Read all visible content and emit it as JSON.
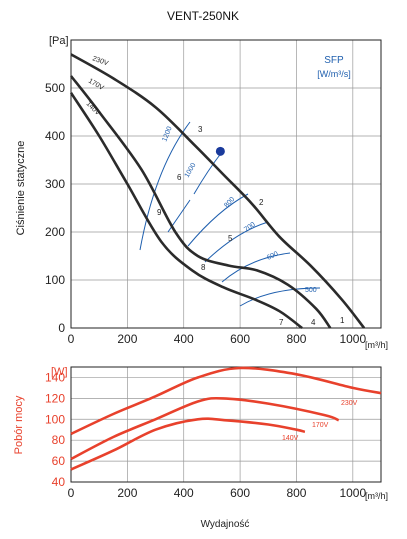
{
  "chart_data": [
    {
      "type": "line",
      "title": "VENT-250NK",
      "ylabel": "Ciśnienie statyczne",
      "y_unit": "[Pa]",
      "x_unit": "[m³/h]",
      "xlim": [
        0,
        1100
      ],
      "ylim": [
        0,
        600
      ],
      "x_ticks": [
        "0",
        "200",
        "400",
        "600",
        "800",
        "1000"
      ],
      "y_ticks": [
        "0",
        "100",
        "200",
        "300",
        "400",
        "500"
      ],
      "grid": true,
      "series": [
        {
          "name": "230V",
          "x": [
            0,
            150,
            300,
            440,
            540,
            640,
            740,
            850,
            960,
            1040
          ],
          "y": [
            570,
            520,
            460,
            380,
            320,
            260,
            190,
            130,
            60,
            0
          ]
        },
        {
          "name": "170V",
          "x": [
            0,
            100,
            250,
            370,
            450,
            560,
            660,
            770,
            870,
            920
          ],
          "y": [
            525,
            450,
            330,
            200,
            150,
            130,
            120,
            90,
            40,
            0
          ]
        },
        {
          "name": "140V",
          "x": [
            0,
            100,
            200,
            320,
            430,
            540,
            650,
            740,
            820
          ],
          "y": [
            490,
            400,
            300,
            180,
            120,
            85,
            60,
            35,
            0
          ]
        }
      ],
      "point_labels": [
        "1",
        "2",
        "3",
        "4",
        "5",
        "6",
        "7",
        "8",
        "9"
      ],
      "sfp_label": "SFP",
      "sfp_unit": "[W/m³/s]",
      "sfp_curves": [
        "500",
        "600",
        "700",
        "800",
        "1000",
        "1200"
      ],
      "operating_point": {
        "x": 530,
        "y": 368
      }
    },
    {
      "type": "line",
      "ylabel": "Pobór mocy",
      "y_unit": "[W]",
      "x_unit": "[m³/h]",
      "xlabel": "Wydajność",
      "xlim": [
        0,
        1100
      ],
      "ylim": [
        40,
        150
      ],
      "x_ticks": [
        "0",
        "200",
        "400",
        "600",
        "800",
        "1000"
      ],
      "y_ticks": [
        "40",
        "60",
        "80",
        "100",
        "120",
        "140"
      ],
      "grid": true,
      "series": [
        {
          "name": "230V",
          "x": [
            0,
            150,
            300,
            450,
            600,
            800,
            1000,
            1100
          ],
          "y": [
            86,
            105,
            122,
            140,
            149,
            143,
            130,
            125
          ]
        },
        {
          "name": "170V",
          "x": [
            0,
            150,
            300,
            450,
            540,
            700,
            900,
            950
          ],
          "y": [
            62,
            83,
            100,
            117,
            120,
            115,
            104,
            99
          ]
        },
        {
          "name": "140V",
          "x": [
            0,
            150,
            300,
            450,
            550,
            700,
            800,
            830
          ],
          "y": [
            52,
            70,
            90,
            100,
            99,
            95,
            90,
            88
          ]
        }
      ]
    }
  ]
}
